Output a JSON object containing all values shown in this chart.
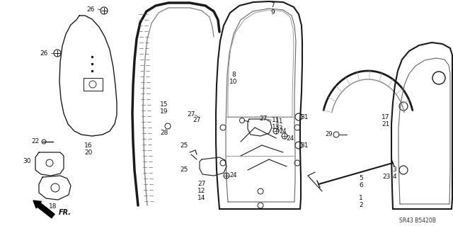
{
  "bg_color": "#ffffff",
  "line_color": "#1a1a1a",
  "diagram_code": "SR43 B5420B",
  "figsize": [
    6.4,
    3.19
  ],
  "dpi": 100
}
